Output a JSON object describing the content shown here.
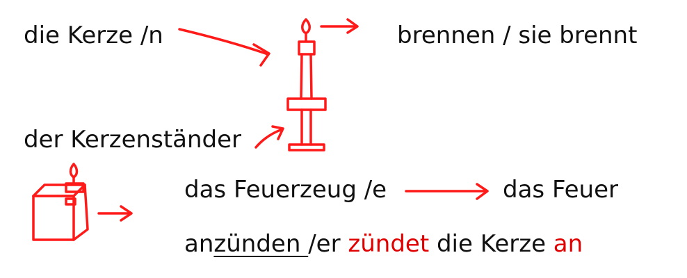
{
  "colors": {
    "text": "#111111",
    "accent_red": "#e00000",
    "sketch_red": "#ff1a1a"
  },
  "vocab": {
    "kerze": "die Kerze /n",
    "brennen": "brennen / sie brennt",
    "kerzenstaender": "der Kerzenständer",
    "feuerzeug": "das Feuerzeug /e",
    "feuer": "das Feuer",
    "anzuenden": {
      "prefix": "an",
      "underlined": "zünden ",
      "middle": "/er ",
      "verb_red": "zündet",
      "object": " die Kerze ",
      "particle_red": "an"
    }
  },
  "drawings": [
    "candle-on-holder",
    "lighter",
    "arrows"
  ]
}
